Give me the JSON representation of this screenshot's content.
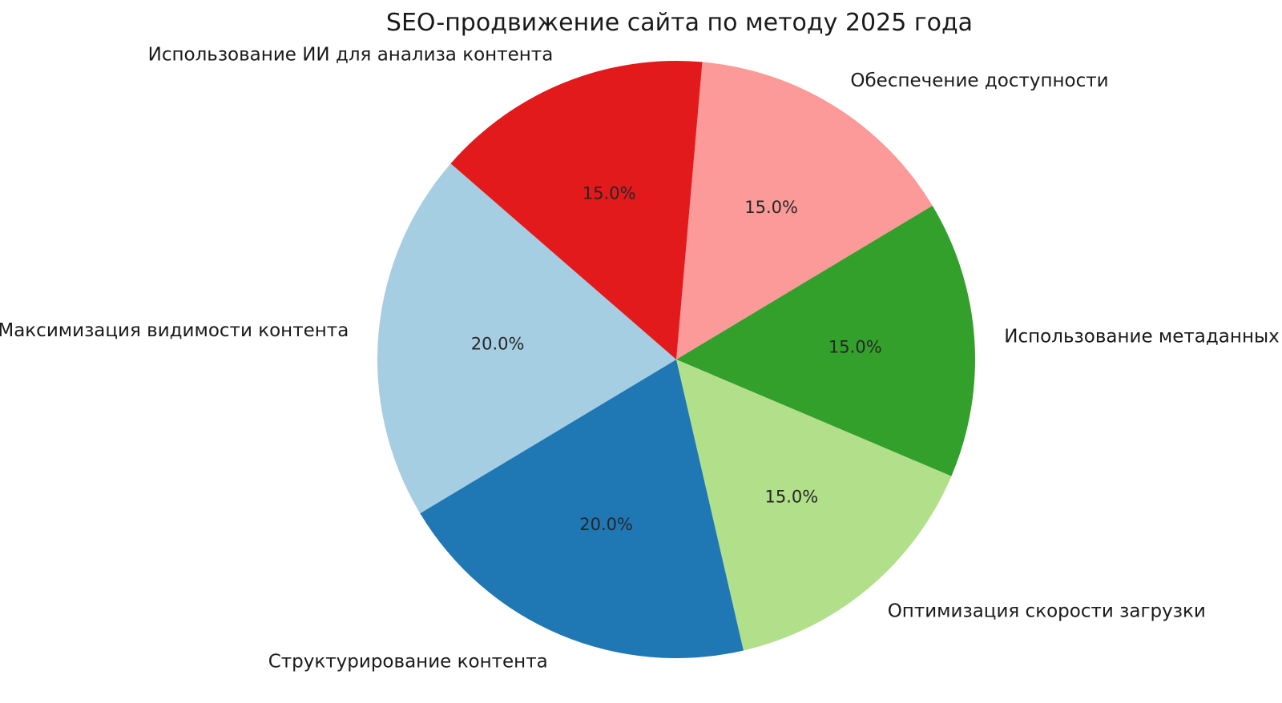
{
  "chart_data": {
    "type": "pie",
    "title": "SEO-продвижение сайта по методу 2025 года",
    "background_color": "#ffffff",
    "title_color": "#1a1a1a",
    "label_color": "#1a1a1a",
    "percent_color": "#262626",
    "start_angle_deg": 85,
    "direction": "clockwise",
    "label_distance": 1.1,
    "percent_distance": 0.6,
    "legend_position": "none",
    "slices": [
      {
        "label": "Обеспечение доступности",
        "value": 15.0,
        "percent_label": "15.0%",
        "color": "#fb9a99"
      },
      {
        "label": "Использование метаданных",
        "value": 15.0,
        "percent_label": "15.0%",
        "color": "#33a02c"
      },
      {
        "label": "Оптимизация скорости загрузки",
        "value": 15.0,
        "percent_label": "15.0%",
        "color": "#b2df8a"
      },
      {
        "label": "Структурирование контента",
        "value": 20.0,
        "percent_label": "20.0%",
        "color": "#1f78b4"
      },
      {
        "label": "Максимизация видимости контента",
        "value": 20.0,
        "percent_label": "20.0%",
        "color": "#a6cee3"
      },
      {
        "label": "Использование ИИ для анализа контента",
        "value": 15.0,
        "percent_label": "15.0%",
        "color": "#e31a1c"
      }
    ]
  }
}
